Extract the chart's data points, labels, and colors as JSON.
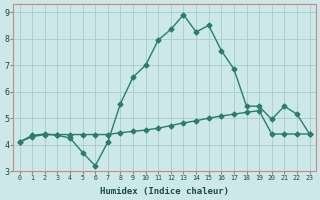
{
  "line1_x": [
    0,
    1,
    2,
    3,
    4,
    5,
    6,
    7,
    8,
    9,
    10,
    11,
    12,
    13,
    14,
    15,
    16,
    17,
    18,
    19,
    20,
    21,
    22,
    23
  ],
  "line1_y": [
    4.1,
    4.35,
    4.4,
    4.35,
    4.25,
    3.7,
    3.2,
    4.1,
    5.55,
    6.55,
    7.0,
    7.95,
    8.35,
    8.9,
    8.25,
    8.5,
    7.55,
    6.85,
    5.45,
    5.45,
    4.95,
    5.45,
    5.15,
    4.4
  ],
  "line2_x": [
    0,
    1,
    2,
    3,
    4,
    5,
    6,
    7,
    8,
    9,
    10,
    11,
    12,
    13,
    14,
    15,
    16,
    17,
    18,
    19,
    20,
    21,
    22,
    23
  ],
  "line2_y": [
    4.1,
    4.3,
    4.38,
    4.38,
    4.38,
    4.38,
    4.38,
    4.38,
    4.45,
    4.5,
    4.55,
    4.62,
    4.72,
    4.82,
    4.9,
    5.0,
    5.08,
    5.15,
    5.22,
    5.28,
    4.4,
    4.4,
    4.4,
    4.4
  ],
  "line_color": "#2a7c6e",
  "bg_color": "#cce8e8",
  "grid_color": "#aacccc",
  "xlabel": "Humidex (Indice chaleur)",
  "xlim": [
    -0.5,
    23.5
  ],
  "ylim": [
    3.0,
    9.3
  ],
  "yticks": [
    3,
    4,
    5,
    6,
    7,
    8,
    9
  ],
  "xticks": [
    0,
    1,
    2,
    3,
    4,
    5,
    6,
    7,
    8,
    9,
    10,
    11,
    12,
    13,
    14,
    15,
    16,
    17,
    18,
    19,
    20,
    21,
    22,
    23
  ],
  "xtick_labels": [
    "0",
    "1",
    "2",
    "3",
    "4",
    "5",
    "6",
    "7",
    "8",
    "9",
    "10",
    "11",
    "12",
    "13",
    "14",
    "15",
    "16",
    "17",
    "18",
    "19",
    "20",
    "21",
    "22",
    "23"
  ],
  "marker": "D",
  "markersize": 2.5,
  "linewidth": 1.0
}
